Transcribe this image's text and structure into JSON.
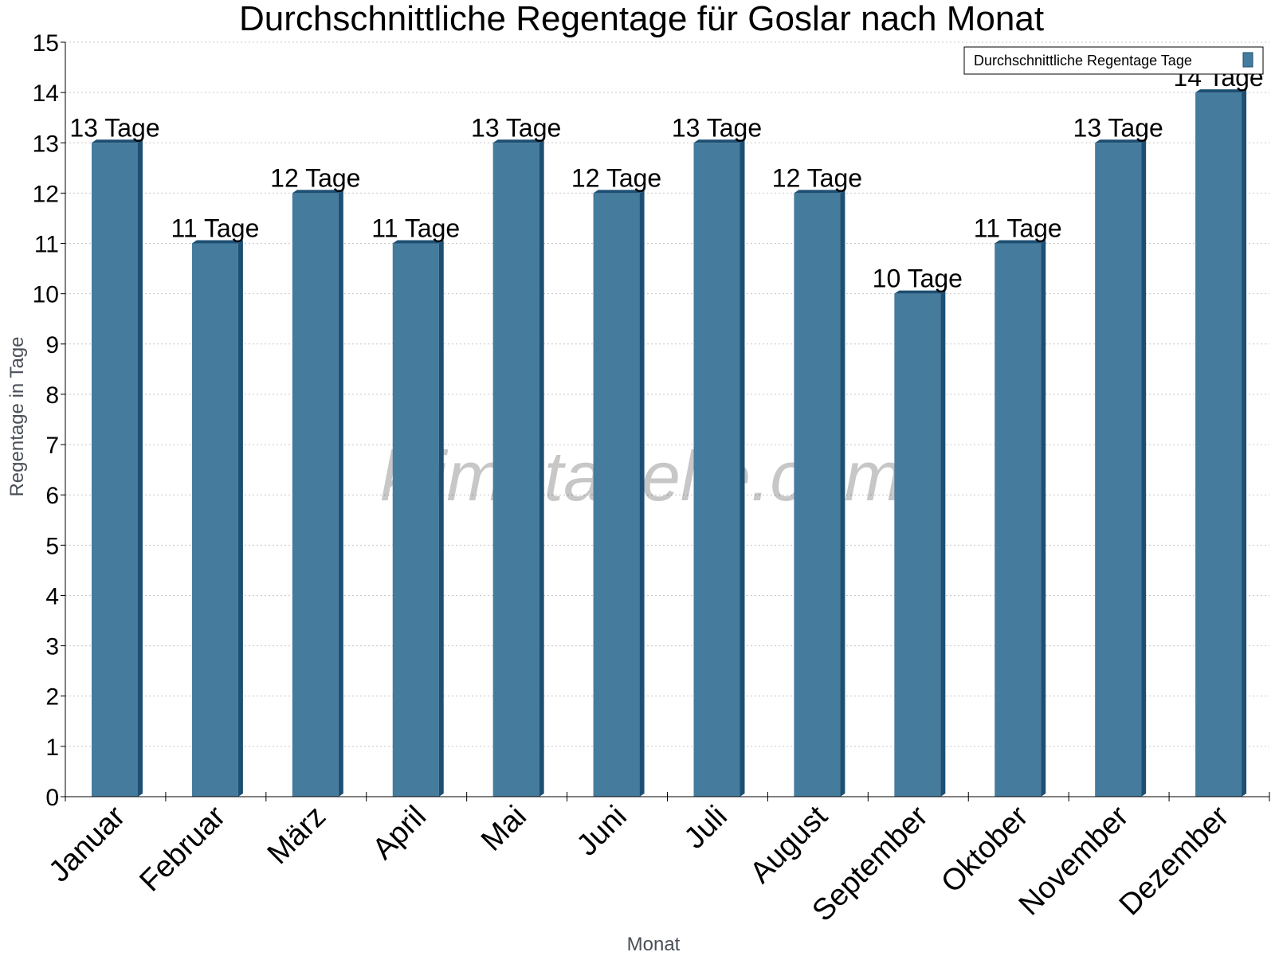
{
  "chart_data": {
    "type": "bar",
    "title": "Durchschnittliche Regentage für Goslar nach Monat",
    "xlabel": "Monat",
    "ylabel": "Regentage in Tage",
    "ylim": [
      0,
      15
    ],
    "yticks": [
      0,
      1,
      2,
      3,
      4,
      5,
      6,
      7,
      8,
      9,
      10,
      11,
      12,
      13,
      14,
      15
    ],
    "categories": [
      "Januar",
      "Februar",
      "März",
      "April",
      "Mai",
      "Juni",
      "Juli",
      "August",
      "September",
      "Oktober",
      "November",
      "Dezember"
    ],
    "series": [
      {
        "name": "Durchschnittliche Regentage Tage",
        "values": [
          13,
          11,
          12,
          11,
          13,
          12,
          13,
          12,
          10,
          11,
          13,
          14
        ],
        "data_labels": [
          "13 Tage",
          "11 Tage",
          "12 Tage",
          "11 Tage",
          "13 Tage",
          "12 Tage",
          "13 Tage",
          "12 Tage",
          "10 Tage",
          "11 Tage",
          "13 Tage",
          "14 Tage"
        ],
        "color": "#457b9d",
        "side_color": "#1d4f73"
      }
    ],
    "grid": true,
    "legend_position": "top-right",
    "watermark": "klimatabelle.com"
  }
}
